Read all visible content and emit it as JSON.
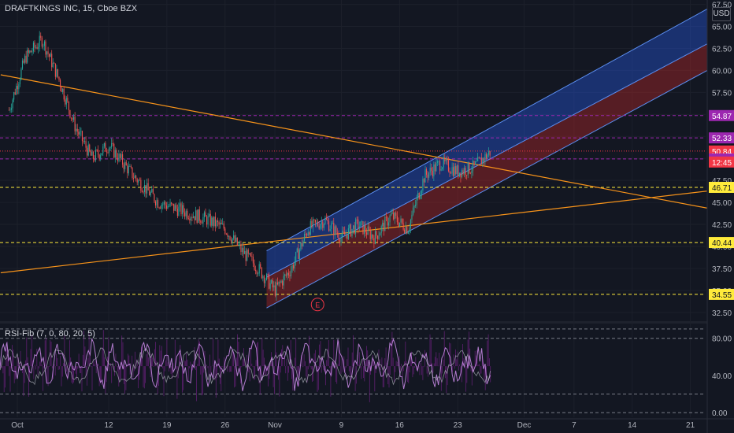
{
  "title": "DRAFTKINGS INC, 15, Cboe BZX",
  "currency": "USD",
  "rsi_title": "RSI-Fib (7, 0, 80, 20, 5)",
  "earnings_marker": "E",
  "colors": {
    "background": "#131722",
    "candle_up": "#26a69a",
    "candle_down": "#ef5350",
    "trendline": "#f7931a",
    "channel_upper_fill": "#2962ff",
    "channel_lower_fill": "#c62828",
    "channel_border": "#5b8def",
    "level_yellow": "#ffeb3b",
    "level_purple": "#9c27b0",
    "level_red": "#e91e63",
    "rsi_line": "#b37ccf",
    "rsi_bars": "#9c27b0"
  },
  "chart_data": {
    "type": "candlestick",
    "symbol": "DRAFTKINGS INC",
    "interval": "15",
    "exchange": "Cboe BZX",
    "y_ticks": [
      "67.50",
      "65.00",
      "62.50",
      "60.00",
      "57.50",
      "55.00",
      "52.50",
      "50.00",
      "47.50",
      "45.00",
      "42.50",
      "40.00",
      "37.50",
      "35.00",
      "32.50"
    ],
    "ylim": [
      31.5,
      68.0
    ],
    "x_ticks": [
      "Oct",
      "12",
      "19",
      "26",
      "Nov",
      "9",
      "16",
      "23",
      "Dec",
      "7",
      "14",
      "21"
    ],
    "price_series_approx": [
      {
        "date": "Sep 30",
        "close": 55.5
      },
      {
        "date": "Oct 2",
        "close": 61.5
      },
      {
        "date": "Oct 4",
        "close": 63.5
      },
      {
        "date": "Oct 6",
        "close": 59.0
      },
      {
        "date": "Oct 8",
        "close": 53.5
      },
      {
        "date": "Oct 10",
        "close": 50.0
      },
      {
        "date": "Oct 12",
        "close": 51.5
      },
      {
        "date": "Oct 15",
        "close": 48.0
      },
      {
        "date": "Oct 18",
        "close": 45.0
      },
      {
        "date": "Oct 21",
        "close": 44.0
      },
      {
        "date": "Oct 24",
        "close": 43.0
      },
      {
        "date": "Oct 26",
        "close": 42.0
      },
      {
        "date": "Oct 28",
        "close": 39.5
      },
      {
        "date": "Oct 30",
        "close": 37.5
      },
      {
        "date": "Nov 1",
        "close": 35.0
      },
      {
        "date": "Nov 3",
        "close": 37.5
      },
      {
        "date": "Nov 5",
        "close": 42.0
      },
      {
        "date": "Nov 7",
        "close": 43.0
      },
      {
        "date": "Nov 9",
        "close": 41.0
      },
      {
        "date": "Nov 11",
        "close": 42.5
      },
      {
        "date": "Nov 13",
        "close": 41.0
      },
      {
        "date": "Nov 15",
        "close": 43.5
      },
      {
        "date": "Nov 17",
        "close": 42.0
      },
      {
        "date": "Nov 19",
        "close": 48.0
      },
      {
        "date": "Nov 21",
        "close": 49.5
      },
      {
        "date": "Nov 23",
        "close": 48.5
      },
      {
        "date": "Nov 25",
        "close": 49.0
      },
      {
        "date": "Nov 27",
        "close": 50.8
      }
    ],
    "price_levels": [
      {
        "value": 54.87,
        "label": "54.87",
        "color": "#9c27b0",
        "style": "dashed"
      },
      {
        "value": 52.33,
        "label": "52.33",
        "color": "#9c27b0",
        "style": "dashed"
      },
      {
        "value": 50.84,
        "label": "50.84",
        "color": "#f23645",
        "style": "dotted"
      },
      {
        "value": 49.94,
        "label": "49.94",
        "color": "#9c27b0",
        "style": "dashed"
      },
      {
        "value": 46.71,
        "label": "46.71",
        "color": "#ffeb3b",
        "style": "dashed"
      },
      {
        "value": 40.44,
        "label": "40.44",
        "color": "#ffeb3b",
        "style": "dashed"
      },
      {
        "value": 34.55,
        "label": "34.55",
        "color": "#ffeb3b",
        "style": "dashed"
      }
    ],
    "last_price_label": "50.84",
    "countdown_label": "12:45",
    "trendlines": [
      {
        "name": "descending",
        "from": {
          "date": "Sep 29",
          "value": 59.5
        },
        "to": {
          "date": "Dec 25",
          "value": 44.0
        }
      },
      {
        "name": "ascending",
        "from": {
          "date": "Sep 29",
          "value": 37.0
        },
        "to": {
          "date": "Dec 25",
          "value": 46.5
        }
      }
    ],
    "regression_channel": {
      "start": {
        "date": "Oct 31",
        "upper": 39.5,
        "mid": 36.5,
        "lower": 33.0
      },
      "end": {
        "date": "Dec 25",
        "upper": 68.0,
        "mid": 64.0,
        "lower": 61.0
      }
    },
    "rsi": {
      "name": "RSI-Fib",
      "params": [
        7,
        0,
        80,
        20,
        5
      ],
      "y_ticks": [
        "80.00",
        "40.00",
        "0.00"
      ],
      "ylim": [
        -5,
        95
      ],
      "levels": [
        90,
        80,
        20,
        0
      ]
    }
  }
}
